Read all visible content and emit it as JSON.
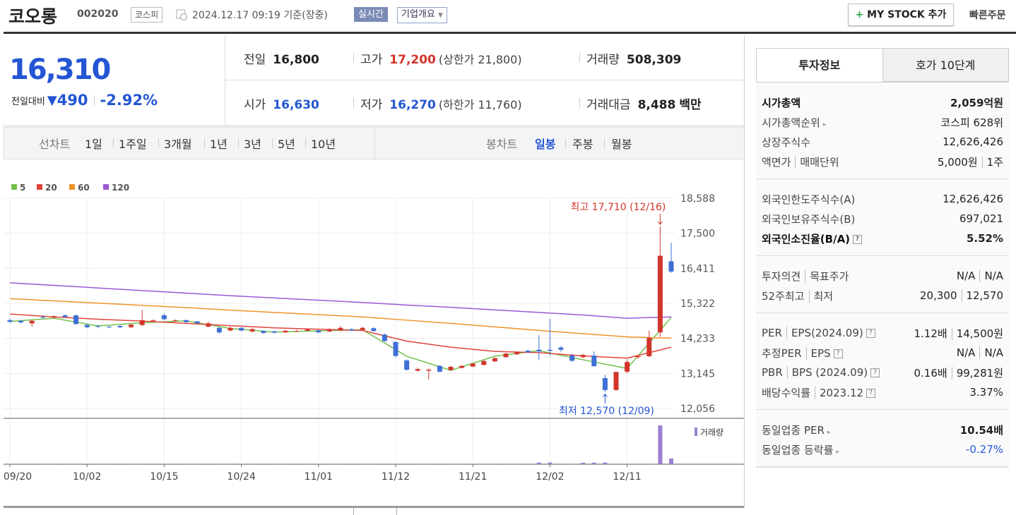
{
  "header": {
    "name": "코오롱",
    "code": "002020",
    "market": "코스피",
    "datetime": "2024.12.17 09:19",
    "basis": "기준(장중)",
    "realtime": "실시간",
    "company": "기업개요",
    "mystock": "MY STOCK 추가",
    "quick_order": "빠른주문"
  },
  "quote": {
    "price": "16,310",
    "change_label": "전일대비",
    "change": "490",
    "change_pct": "-2.92%"
  },
  "summary": [
    [
      {
        "label": "전일",
        "value": "16,800"
      },
      {
        "label": "고가",
        "value": "17,200",
        "sub": "(상한가 21,800)"
      },
      {
        "label": "거래량",
        "value": "508,309"
      }
    ],
    [
      {
        "label": "시가",
        "value": "16,630"
      },
      {
        "label": "저가",
        "value": "16,270",
        "sub": "(하한가 11,760)"
      },
      {
        "label": "거래대금",
        "value": "8,488",
        "unit": "백만"
      }
    ]
  ],
  "tabs": {
    "line_label": "선차트",
    "line": [
      "1일",
      "1주일",
      "3개월",
      "1년",
      "3년",
      "5년",
      "10년"
    ],
    "candle_label": "봉차트",
    "candle": [
      "일봉",
      "주봉",
      "월봉"
    ]
  },
  "chart": {
    "type": "candlestick",
    "ylim": [
      12056,
      18588
    ],
    "yticks": [
      {
        "value": 18588,
        "label": "18,588"
      },
      {
        "value": 17500,
        "label": "17,500"
      },
      {
        "value": 16411,
        "label": "16,411"
      },
      {
        "value": 15322,
        "label": "15,322"
      },
      {
        "value": 14233,
        "label": "14,233"
      },
      {
        "value": 13145,
        "label": "13,145"
      },
      {
        "value": 12056,
        "label": "12,056"
      }
    ],
    "up_color": "#d2352b",
    "down_color": "#3d6fd6",
    "categories": [
      "09/20",
      null,
      null,
      null,
      null,
      null,
      null,
      "10/02",
      null,
      null,
      null,
      null,
      null,
      null,
      "10/15",
      null,
      null,
      null,
      null,
      null,
      null,
      "10/24",
      null,
      null,
      null,
      null,
      null,
      null,
      "11/01",
      null,
      null,
      null,
      null,
      null,
      null,
      "11/12",
      null,
      null,
      null,
      null,
      null,
      null,
      "11/21",
      null,
      null,
      null,
      null,
      null,
      null,
      "12/02",
      null,
      null,
      null,
      null,
      null,
      null,
      "12/11",
      null,
      null,
      null,
      null
    ],
    "candles": [
      {
        "o": 14800,
        "h": 14850,
        "l": 14700,
        "c": 14750
      },
      {
        "o": 14780,
        "h": 14800,
        "l": 14700,
        "c": 14730
      },
      {
        "o": 14700,
        "h": 14800,
        "l": 14600,
        "c": 14780
      },
      {
        "o": 14900,
        "h": 14950,
        "l": 14850,
        "c": 14880
      },
      {
        "o": 14880,
        "h": 14950,
        "l": 14850,
        "c": 14920
      },
      {
        "o": 14950,
        "h": 14980,
        "l": 14880,
        "c": 14900
      },
      {
        "o": 14950,
        "h": 14970,
        "l": 14650,
        "c": 14680
      },
      {
        "o": 14650,
        "h": 14680,
        "l": 14550,
        "c": 14580
      },
      {
        "o": 14620,
        "h": 14650,
        "l": 14550,
        "c": 14600
      },
      {
        "o": 14600,
        "h": 14620,
        "l": 14560,
        "c": 14590
      },
      {
        "o": 14620,
        "h": 14650,
        "l": 14560,
        "c": 14580
      },
      {
        "o": 14580,
        "h": 14680,
        "l": 14560,
        "c": 14660
      },
      {
        "o": 14650,
        "h": 15120,
        "l": 14620,
        "c": 14800
      },
      {
        "o": 14780,
        "h": 14820,
        "l": 14740,
        "c": 14800
      },
      {
        "o": 14950,
        "h": 15000,
        "l": 14800,
        "c": 14830
      },
      {
        "o": 14780,
        "h": 14820,
        "l": 14750,
        "c": 14800
      },
      {
        "o": 14800,
        "h": 14820,
        "l": 14720,
        "c": 14740
      },
      {
        "o": 14760,
        "h": 14780,
        "l": 14680,
        "c": 14700
      },
      {
        "o": 14600,
        "h": 14750,
        "l": 14580,
        "c": 14700
      },
      {
        "o": 14560,
        "h": 14600,
        "l": 14380,
        "c": 14420
      },
      {
        "o": 14480,
        "h": 14600,
        "l": 14450,
        "c": 14560
      },
      {
        "o": 14560,
        "h": 14580,
        "l": 14450,
        "c": 14480
      },
      {
        "o": 14450,
        "h": 14560,
        "l": 14420,
        "c": 14520
      },
      {
        "o": 14460,
        "h": 14480,
        "l": 14380,
        "c": 14400
      },
      {
        "o": 14450,
        "h": 14480,
        "l": 14390,
        "c": 14410
      },
      {
        "o": 14420,
        "h": 14500,
        "l": 14400,
        "c": 14470
      },
      {
        "o": 14450,
        "h": 14500,
        "l": 14440,
        "c": 14460
      },
      {
        "o": 14470,
        "h": 14530,
        "l": 14450,
        "c": 14510
      },
      {
        "o": 14480,
        "h": 14500,
        "l": 14400,
        "c": 14420
      },
      {
        "o": 14450,
        "h": 14550,
        "l": 14430,
        "c": 14500
      },
      {
        "o": 14480,
        "h": 14620,
        "l": 14460,
        "c": 14560
      },
      {
        "o": 14520,
        "h": 14540,
        "l": 14460,
        "c": 14480
      },
      {
        "o": 14500,
        "h": 14600,
        "l": 14480,
        "c": 14560
      },
      {
        "o": 14550,
        "h": 14580,
        "l": 14450,
        "c": 14460
      },
      {
        "o": 14350,
        "h": 14380,
        "l": 14130,
        "c": 14150
      },
      {
        "o": 14120,
        "h": 14140,
        "l": 13650,
        "c": 13690
      },
      {
        "o": 13550,
        "h": 13580,
        "l": 13230,
        "c": 13260
      },
      {
        "o": 13230,
        "h": 13320,
        "l": 13200,
        "c": 13280
      },
      {
        "o": 13230,
        "h": 13300,
        "l": 12960,
        "c": 13260
      },
      {
        "o": 13380,
        "h": 13400,
        "l": 13180,
        "c": 13200
      },
      {
        "o": 13250,
        "h": 13380,
        "l": 13230,
        "c": 13350
      },
      {
        "o": 13320,
        "h": 13400,
        "l": 13300,
        "c": 13380
      },
      {
        "o": 13360,
        "h": 13470,
        "l": 13340,
        "c": 13450
      },
      {
        "o": 13410,
        "h": 13560,
        "l": 13390,
        "c": 13530
      },
      {
        "o": 13520,
        "h": 13640,
        "l": 13500,
        "c": 13620
      },
      {
        "o": 13650,
        "h": 13790,
        "l": 13640,
        "c": 13760
      },
      {
        "o": 13740,
        "h": 13830,
        "l": 13720,
        "c": 13800
      },
      {
        "o": 13850,
        "h": 13880,
        "l": 13780,
        "c": 13800
      },
      {
        "o": 13880,
        "h": 14330,
        "l": 13560,
        "c": 13830
      },
      {
        "o": 13880,
        "h": 14840,
        "l": 13700,
        "c": 13850
      },
      {
        "o": 13950,
        "h": 14000,
        "l": 13820,
        "c": 13880
      },
      {
        "o": 13700,
        "h": 13760,
        "l": 13500,
        "c": 13540
      },
      {
        "o": 13650,
        "h": 13750,
        "l": 13620,
        "c": 13720
      },
      {
        "o": 13700,
        "h": 13830,
        "l": 13350,
        "c": 13370
      },
      {
        "o": 13000,
        "h": 13100,
        "l": 12570,
        "c": 12630
      },
      {
        "o": 12630,
        "h": 13200,
        "l": 12600,
        "c": 13190
      },
      {
        "o": 13200,
        "h": 13580,
        "l": 13150,
        "c": 13500
      },
      {
        "o": 13650,
        "h": 13720,
        "l": 13600,
        "c": 13680
      },
      {
        "o": 13680,
        "h": 14470,
        "l": 13650,
        "c": 14250
      },
      {
        "o": 14420,
        "h": 17710,
        "l": 14280,
        "c": 16800
      },
      {
        "o": 16630,
        "h": 17200,
        "l": 16270,
        "c": 16310
      }
    ],
    "volume": [
      40000,
      40000,
      40000,
      40000,
      40000,
      40000,
      40000,
      40000,
      40000,
      40000,
      40000,
      40000,
      40000,
      40000,
      40000,
      40000,
      40000,
      40000,
      40000,
      40000,
      40000,
      40000,
      40000,
      40000,
      40000,
      40000,
      40000,
      40000,
      40000,
      40000,
      40000,
      40000,
      40000,
      40000,
      40000,
      40000,
      40000,
      40000,
      40000,
      40000,
      40000,
      40000,
      40000,
      40000,
      40000,
      40000,
      40000,
      40000,
      150000,
      150000,
      40000,
      40000,
      130000,
      140000,
      150000,
      40000,
      40000,
      40000,
      40000,
      3500000,
      508309
    ],
    "volume_label": "거래량",
    "volume_color": "#9b7fd0",
    "ma_x": [
      0,
      4,
      8,
      12,
      16,
      20,
      24,
      28,
      32,
      36,
      40,
      44,
      48,
      52,
      56,
      60
    ],
    "ma": [
      {
        "name": "5",
        "color": "#72c04a",
        "values": [
          14760,
          14860,
          14620,
          14720,
          14780,
          14540,
          14430,
          14470,
          14500,
          13680,
          13240,
          13680,
          13850,
          13570,
          13300,
          14880
        ]
      },
      {
        "name": "20",
        "color": "#e0443c",
        "values": [
          14990,
          14900,
          14830,
          14770,
          14700,
          14630,
          14560,
          14520,
          14480,
          14150,
          13960,
          13830,
          13790,
          13690,
          13620,
          13960
        ]
      },
      {
        "name": "60",
        "color": "#ef922c",
        "values": [
          15470,
          15400,
          15330,
          15260,
          15190,
          15110,
          15040,
          14970,
          14900,
          14800,
          14700,
          14590,
          14480,
          14380,
          14280,
          14240
        ]
      },
      {
        "name": "120",
        "color": "#9b59d6",
        "values": [
          15960,
          15880,
          15800,
          15720,
          15640,
          15560,
          15490,
          15420,
          15350,
          15270,
          15200,
          15120,
          15040,
          14960,
          14860,
          14900
        ]
      }
    ],
    "annotations": {
      "high": "최고 17,710 (12/16)",
      "low": "최저 12,570 (12/09)"
    }
  },
  "invest": {
    "tabs": [
      "투자정보",
      "호가 10단계"
    ],
    "groups": [
      [
        {
          "label": [
            "시가총액"
          ],
          "value": [
            "2,059억원"
          ],
          "strong": true
        },
        {
          "label": [
            "시가총액순위"
          ],
          "icon": "more",
          "value": [
            "코스피 628위"
          ]
        },
        {
          "label": [
            "상장주식수"
          ],
          "value": [
            "12,626,426"
          ]
        },
        {
          "label": [
            "액면가",
            "매매단위"
          ],
          "value": [
            "5,000원",
            "1주"
          ]
        }
      ],
      [
        {
          "label": [
            "외국인한도주식수(A)"
          ],
          "value": [
            "12,626,426"
          ]
        },
        {
          "label": [
            "외국인보유주식수(B)"
          ],
          "value": [
            "697,021"
          ]
        },
        {
          "label": [
            "외국인소진율(B/A)"
          ],
          "icon": "help",
          "value": [
            "5.52%"
          ],
          "strong": true
        }
      ],
      [
        {
          "label": [
            "투자의견",
            "목표주가"
          ],
          "value": [
            "N/A",
            "N/A"
          ]
        },
        {
          "label": [
            "52주최고",
            "최저"
          ],
          "value": [
            "20,300",
            "12,570"
          ]
        }
      ],
      [
        {
          "label": [
            "PER",
            "EPS(2024.09)"
          ],
          "icon": "help",
          "value": [
            "1.12배",
            "14,500원"
          ]
        },
        {
          "label": [
            "추정PER",
            "EPS"
          ],
          "icon": "help",
          "value": [
            "N/A",
            "N/A"
          ]
        },
        {
          "label": [
            "PBR",
            "BPS (2024.09)"
          ],
          "icon": "help",
          "value": [
            "0.16배",
            "99,281원"
          ]
        },
        {
          "label": [
            "배당수익률",
            "2023.12"
          ],
          "icon": "help",
          "value": [
            "3.37%"
          ]
        }
      ],
      [
        {
          "label": [
            "동일업종 PER"
          ],
          "icon": "more",
          "value": [
            "10.54배"
          ],
          "strong_value": true
        },
        {
          "label": [
            "동일업종 등락률"
          ],
          "icon": "more",
          "value": [
            "-0.27%"
          ],
          "tone": "down"
        }
      ]
    ]
  }
}
